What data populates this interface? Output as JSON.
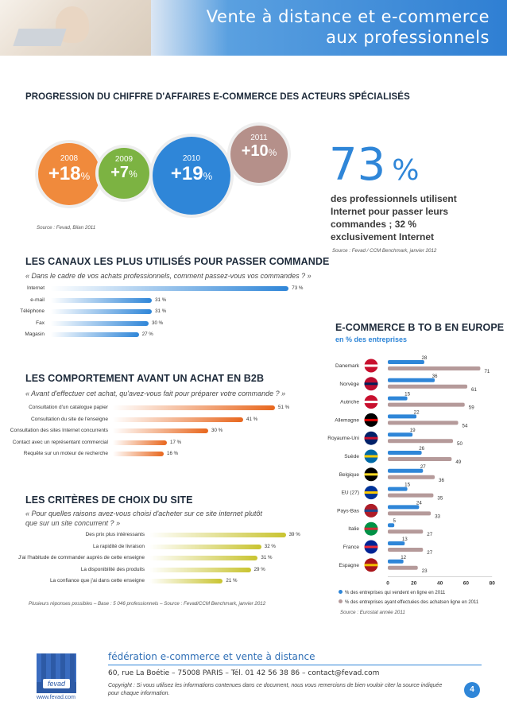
{
  "header": {
    "title_line1": "Vente à distance et e-commerce",
    "title_line2": "aux professionnels"
  },
  "progression": {
    "title": "PROGRESSION DU CHIFFRE D'AFFAIRES E-COMMERCE DES ACTEURS SPÉCIALISÉS",
    "source": "Source : Fevad, Bilan 2011",
    "circles": [
      {
        "year": "2008",
        "value": "+18",
        "unit": "%",
        "color": "#f08a3c"
      },
      {
        "year": "2009",
        "value": "+7",
        "unit": "%",
        "color": "#7cb342"
      },
      {
        "year": "2010",
        "value": "+19",
        "unit": "%",
        "color": "#2f86d8"
      },
      {
        "year": "2011",
        "value": "+10",
        "unit": "%",
        "color": "#b5908a"
      }
    ]
  },
  "stat": {
    "big": "73",
    "pct": "%",
    "text": [
      "des professionnels utilisent",
      "Internet pour passer leurs",
      "commandes ; 32 %",
      "exclusivement Internet"
    ],
    "source": "Source : Fevad / CCM Benchmark, janvier 2012"
  },
  "chart_data": [
    {
      "type": "bar",
      "orientation": "horizontal",
      "title": "LES CANAUX LES PLUS UTILISÉS POUR PASSER COMMANDE",
      "subtitle": "« Dans le cadre de vos achats professionnels, comment passez-vous vos commandes ? »",
      "categories": [
        "Internet",
        "e-mail",
        "Téléphone",
        "Fax",
        "Magasin"
      ],
      "values": [
        73,
        31,
        31,
        30,
        27
      ],
      "value_labels": [
        "73 %",
        "31 %",
        "31 %",
        "30 %",
        "27 %"
      ],
      "color": "#2f86d8"
    },
    {
      "type": "bar",
      "orientation": "horizontal",
      "title": "LES COMPORTEMENT AVANT UN ACHAT EN B2B",
      "subtitle": "« Avant d'effectuer cet achat, qu'avez-vous fait pour préparer votre commande ? »",
      "categories": [
        "Consultation d'un catalogue papier",
        "Consultation du site de l'enseigne",
        "Consultation des sites Internet concurrents",
        "Contact avec un représentant commercial",
        "Requête sur un moteur de recherche"
      ],
      "values": [
        51,
        41,
        30,
        17,
        16
      ],
      "value_labels": [
        "51 %",
        "41 %",
        "30 %",
        "17 %",
        "16 %"
      ],
      "color": "#e8671e"
    },
    {
      "type": "bar",
      "orientation": "horizontal",
      "title": "LES CRITÈRES DE CHOIX DU SITE",
      "subtitle_line1": "« Pour quelles raisons avez-vous choisi d'acheter sur ce site internet plutôt",
      "subtitle_line2": "que sur un site concurrent ? »",
      "categories": [
        "Des prix plus intéressants",
        "La rapidité de livraison",
        "J'ai l'habitude de commander auprès de cette enseigne",
        "La disponibilité des produits",
        "La confiance que j'ai dans cette enseigne"
      ],
      "values": [
        39,
        32,
        31,
        29,
        21
      ],
      "value_labels": [
        "39 %",
        "32 %",
        "31 %",
        "29 %",
        "21 %"
      ],
      "color": "#c9c430",
      "footnote": "Plusieurs réponses possibles – Base : 5 046 professionnels – Source : Fevad/CCM Benchmark, janvier 2012"
    },
    {
      "type": "bar",
      "orientation": "horizontal",
      "title": "E-COMMERCE B TO B EN EUROPE",
      "subtitle": "en % des entreprises",
      "categories": [
        "Danemark",
        "Norvège",
        "Autriche",
        "Allemagne",
        "Royaume-Uni",
        "Suède",
        "Belgique",
        "EU (27)",
        "Pays-Bas",
        "Italie",
        "France",
        "Espagne"
      ],
      "series": [
        {
          "name": "% des entreprises qui vendent en ligne en 2011",
          "values": [
            28,
            36,
            15,
            22,
            19,
            26,
            27,
            15,
            24,
            5,
            13,
            12
          ],
          "color": "#2f86d8"
        },
        {
          "name": "% des entreprises ayant effectuées des achatsen ligne en 2011",
          "values": [
            71,
            61,
            59,
            54,
            50,
            49,
            36,
            35,
            33,
            27,
            27,
            23
          ],
          "color": "#b59a9a"
        }
      ],
      "xlim": [
        0,
        80
      ],
      "xticks": [
        "0",
        "20",
        "40",
        "60",
        "80"
      ],
      "grid": false,
      "legend": "bottom",
      "source": "Source : Eurostat année 2011"
    }
  ],
  "footer": {
    "title": "fédération e-commerce et vente à distance",
    "address": "60, rue La Boétie – 75008 PARIS – Tél. 01 42 56 38 86 – contact@fevad.com",
    "copyright_line1": "Copyright : Si vous utilisez les informations contenues dans ce document, nous vous remercions de bien vouloir citer la source indiquée",
    "copyright_line2": "pour chaque information.",
    "logo_text": "fevad",
    "url": "www.fevad.com",
    "page": "4"
  }
}
